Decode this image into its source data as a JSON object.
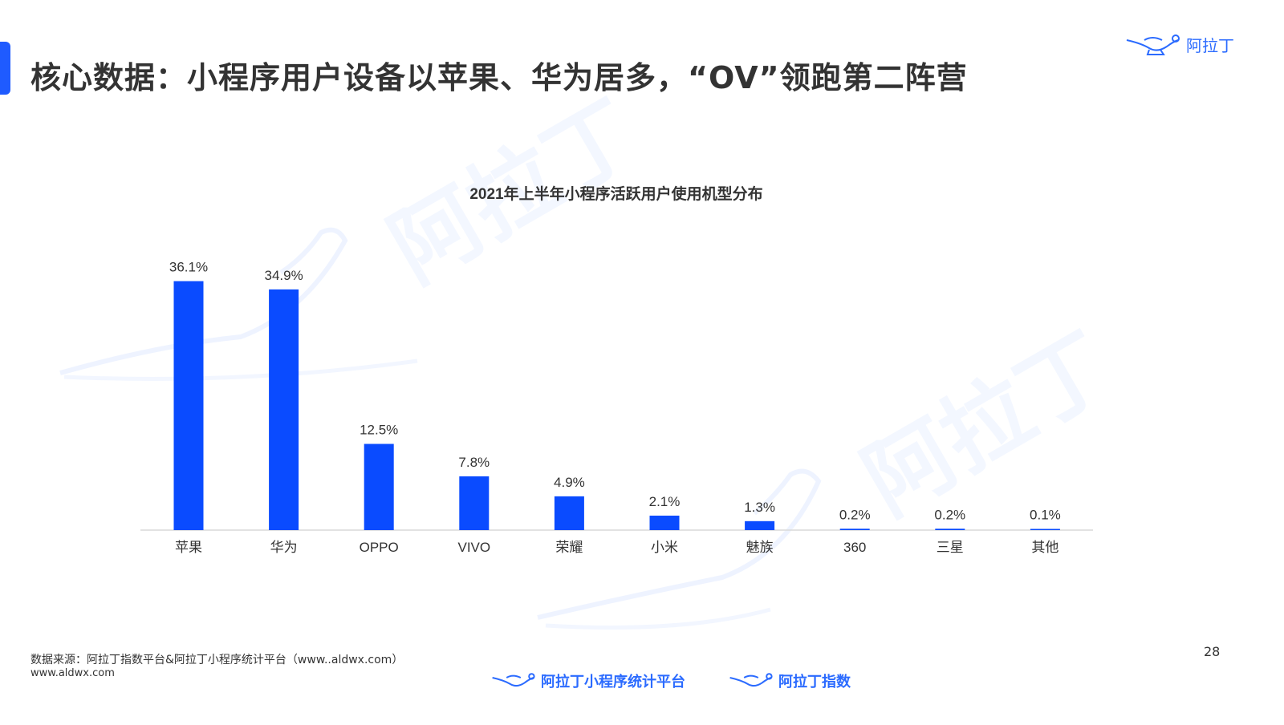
{
  "slide": {
    "title": "核心数据：小程序用户设备以苹果、华为居多，“OV”领跑第二阵营",
    "logo_text": "阿拉丁",
    "watermark_text": "阿拉丁",
    "page_number": "28",
    "source": "数据来源：阿拉丁指数平台&阿拉丁小程序统计平台（www..aldwx.com）",
    "site": "www.aldwx.com",
    "footer_logos": [
      "阿拉丁小程序统计平台",
      "阿拉丁指数"
    ]
  },
  "colors": {
    "accent": "#1f5bff",
    "bar": "#0a4bff",
    "brand_blue": "#2b6bff",
    "title_text": "#333333"
  },
  "chart_data": {
    "type": "bar",
    "title": "2021年上半年小程序活跃用户使用机型分布",
    "categories": [
      "苹果",
      "华为",
      "OPPO",
      "VIVO",
      "荣耀",
      "小米",
      "魅族",
      "360",
      "三星",
      "其他"
    ],
    "values": [
      36.1,
      34.9,
      12.5,
      7.8,
      4.9,
      2.1,
      1.3,
      0.2,
      0.2,
      0.1
    ],
    "value_labels": [
      "36.1%",
      "34.9%",
      "12.5%",
      "7.8%",
      "4.9%",
      "2.1%",
      "1.3%",
      "0.2%",
      "0.2%",
      "0.1%"
    ],
    "xlabel": "",
    "ylabel": "",
    "unit": "%",
    "grid": false,
    "legend": "none"
  }
}
